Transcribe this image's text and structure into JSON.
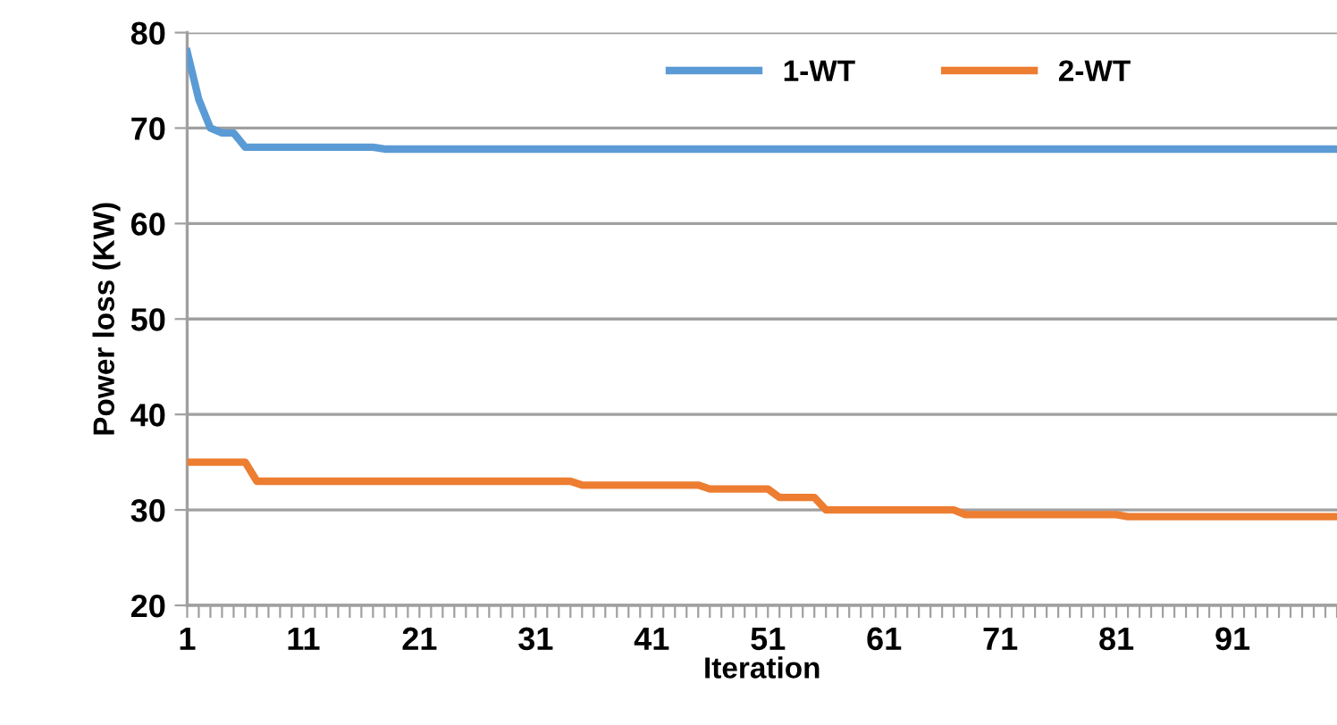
{
  "chart_data": {
    "type": "line",
    "xlabel": "Iteration",
    "ylabel": "Power loss (KW)",
    "x": [
      1,
      2,
      3,
      4,
      5,
      6,
      7,
      8,
      9,
      10,
      11,
      12,
      13,
      14,
      15,
      16,
      17,
      18,
      19,
      20,
      21,
      22,
      23,
      24,
      25,
      26,
      27,
      28,
      29,
      30,
      31,
      32,
      33,
      34,
      35,
      36,
      37,
      38,
      39,
      40,
      41,
      42,
      43,
      44,
      45,
      46,
      47,
      48,
      49,
      50,
      51,
      52,
      53,
      54,
      55,
      56,
      57,
      58,
      59,
      60,
      61,
      62,
      63,
      64,
      65,
      66,
      67,
      68,
      69,
      70,
      71,
      72,
      73,
      74,
      75,
      76,
      77,
      78,
      79,
      80,
      81,
      82,
      83,
      84,
      85,
      86,
      87,
      88,
      89,
      90,
      91,
      92,
      93,
      94,
      95,
      96,
      97,
      98,
      99,
      100
    ],
    "series": [
      {
        "name": "1-WT",
        "color": "#5b9bd5",
        "values": [
          78,
          73,
          70,
          69.5,
          69.5,
          68,
          68,
          68,
          68,
          68,
          68,
          68,
          68,
          68,
          68,
          68,
          68,
          67.8,
          67.8,
          67.8,
          67.8,
          67.8,
          67.8,
          67.8,
          67.8,
          67.8,
          67.8,
          67.8,
          67.8,
          67.8,
          67.8,
          67.8,
          67.8,
          67.8,
          67.8,
          67.8,
          67.8,
          67.8,
          67.8,
          67.8,
          67.8,
          67.8,
          67.8,
          67.8,
          67.8,
          67.8,
          67.8,
          67.8,
          67.8,
          67.8,
          67.8,
          67.8,
          67.8,
          67.8,
          67.8,
          67.8,
          67.8,
          67.8,
          67.8,
          67.8,
          67.8,
          67.8,
          67.8,
          67.8,
          67.8,
          67.8,
          67.8,
          67.8,
          67.8,
          67.8,
          67.8,
          67.8,
          67.8,
          67.8,
          67.8,
          67.8,
          67.8,
          67.8,
          67.8,
          67.8,
          67.8,
          67.8,
          67.8,
          67.8,
          67.8,
          67.8,
          67.8,
          67.8,
          67.8,
          67.8,
          67.8,
          67.8,
          67.8,
          67.8,
          67.8,
          67.8,
          67.8,
          67.8,
          67.8,
          67.8
        ]
      },
      {
        "name": "2-WT",
        "color": "#ed7d31",
        "values": [
          35,
          35,
          35,
          35,
          35,
          35,
          33,
          33,
          33,
          33,
          33,
          33,
          33,
          33,
          33,
          33,
          33,
          33,
          33,
          33,
          33,
          33,
          33,
          33,
          33,
          33,
          33,
          33,
          33,
          33,
          33,
          33,
          33,
          33,
          32.6,
          32.6,
          32.6,
          32.6,
          32.6,
          32.6,
          32.6,
          32.6,
          32.6,
          32.6,
          32.6,
          32.2,
          32.2,
          32.2,
          32.2,
          32.2,
          32.2,
          31.3,
          31.3,
          31.3,
          31.3,
          30,
          30,
          30,
          30,
          30,
          30,
          30,
          30,
          30,
          30,
          30,
          30,
          29.5,
          29.5,
          29.5,
          29.5,
          29.5,
          29.5,
          29.5,
          29.5,
          29.5,
          29.5,
          29.5,
          29.5,
          29.5,
          29.5,
          29.3,
          29.3,
          29.3,
          29.3,
          29.3,
          29.3,
          29.3,
          29.3,
          29.3,
          29.3,
          29.3,
          29.3,
          29.3,
          29.3,
          29.3,
          29.3,
          29.3,
          29.3,
          29.3
        ]
      }
    ],
    "xlim": [
      1,
      100
    ],
    "xticks": [
      1,
      {
        "value": 2,
        "label": null
      },
      {
        "value": 3,
        "label": null
      },
      {
        "value": 4,
        "label": null
      },
      {
        "value": 5,
        "label": null
      },
      {
        "value": 6,
        "label": null
      },
      {
        "value": 7,
        "label": null
      },
      {
        "value": 8,
        "label": null
      },
      {
        "value": 9,
        "label": null
      },
      {
        "value": 10,
        "label": null
      },
      11,
      {
        "value": 12,
        "label": null
      },
      {
        "value": 13,
        "label": null
      },
      {
        "value": 14,
        "label": null
      },
      {
        "value": 15,
        "label": null
      },
      {
        "value": 16,
        "label": null
      },
      {
        "value": 17,
        "label": null
      },
      {
        "value": 18,
        "label": null
      },
      {
        "value": 19,
        "label": null
      },
      {
        "value": 20,
        "label": null
      },
      21,
      {
        "value": 22,
        "label": null
      },
      {
        "value": 23,
        "label": null
      },
      {
        "value": 24,
        "label": null
      },
      {
        "value": 25,
        "label": null
      },
      {
        "value": 26,
        "label": null
      },
      {
        "value": 27,
        "label": null
      },
      {
        "value": 28,
        "label": null
      },
      {
        "value": 29,
        "label": null
      },
      {
        "value": 30,
        "label": null
      },
      31,
      {
        "value": 32,
        "label": null
      },
      {
        "value": 33,
        "label": null
      },
      {
        "value": 34,
        "label": null
      },
      {
        "value": 35,
        "label": null
      },
      {
        "value": 36,
        "label": null
      },
      {
        "value": 37,
        "label": null
      },
      {
        "value": 38,
        "label": null
      },
      {
        "value": 39,
        "label": null
      },
      {
        "value": 40,
        "label": null
      },
      41,
      {
        "value": 42,
        "label": null
      },
      {
        "value": 43,
        "label": null
      },
      {
        "value": 44,
        "label": null
      },
      {
        "value": 45,
        "label": null
      },
      {
        "value": 46,
        "label": null
      },
      {
        "value": 47,
        "label": null
      },
      {
        "value": 48,
        "label": null
      },
      {
        "value": 49,
        "label": null
      },
      {
        "value": 50,
        "label": null
      },
      51,
      {
        "value": 52,
        "label": null
      },
      {
        "value": 53,
        "label": null
      },
      {
        "value": 54,
        "label": null
      },
      {
        "value": 55,
        "label": null
      },
      {
        "value": 56,
        "label": null
      },
      {
        "value": 57,
        "label": null
      },
      {
        "value": 58,
        "label": null
      },
      {
        "value": 59,
        "label": null
      },
      {
        "value": 60,
        "label": null
      },
      61,
      {
        "value": 62,
        "label": null
      },
      {
        "value": 63,
        "label": null
      },
      {
        "value": 64,
        "label": null
      },
      {
        "value": 65,
        "label": null
      },
      {
        "value": 66,
        "label": null
      },
      {
        "value": 67,
        "label": null
      },
      {
        "value": 68,
        "label": null
      },
      {
        "value": 69,
        "label": null
      },
      {
        "value": 70,
        "label": null
      },
      71,
      {
        "value": 72,
        "label": null
      },
      {
        "value": 73,
        "label": null
      },
      {
        "value": 74,
        "label": null
      },
      {
        "value": 75,
        "label": null
      },
      {
        "value": 76,
        "label": null
      },
      {
        "value": 77,
        "label": null
      },
      {
        "value": 78,
        "label": null
      },
      {
        "value": 79,
        "label": null
      },
      {
        "value": 80,
        "label": null
      },
      81,
      {
        "value": 82,
        "label": null
      },
      {
        "value": 83,
        "label": null
      },
      {
        "value": 84,
        "label": null
      },
      {
        "value": 85,
        "label": null
      },
      {
        "value": 86,
        "label": null
      },
      {
        "value": 87,
        "label": null
      },
      {
        "value": 88,
        "label": null
      },
      {
        "value": 89,
        "label": null
      },
      {
        "value": 90,
        "label": null
      },
      91,
      {
        "value": 92,
        "label": null
      },
      {
        "value": 93,
        "label": null
      },
      {
        "value": 94,
        "label": null
      },
      {
        "value": 95,
        "label": null
      },
      {
        "value": 96,
        "label": null
      },
      {
        "value": 97,
        "label": null
      },
      {
        "value": 98,
        "label": null
      },
      {
        "value": 99,
        "label": null
      },
      {
        "value": 100,
        "label": null
      }
    ],
    "ylim": [
      20,
      80
    ],
    "yticks": [
      20,
      30,
      40,
      50,
      60,
      70,
      80
    ],
    "grid": "y",
    "legend": "top",
    "marker": "none",
    "line_style": "solid"
  }
}
